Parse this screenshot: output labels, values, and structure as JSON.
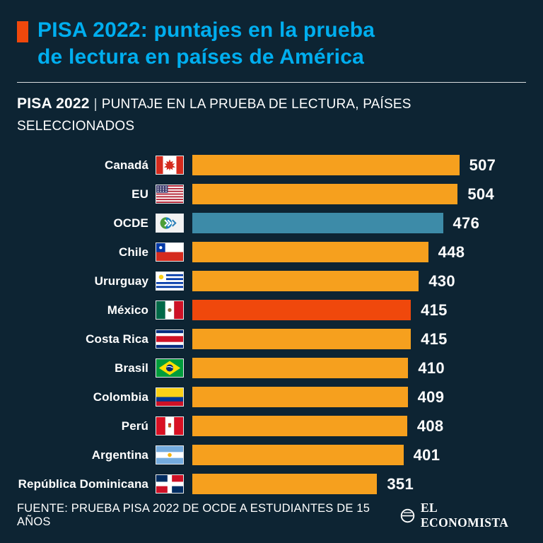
{
  "colors": {
    "background": "#0D2433",
    "accent_cyan": "#00AEEF",
    "bar_orange": "#F6A01E",
    "bar_teal": "#3D8BA8",
    "bar_red": "#F0480C",
    "marker": "#F0480C"
  },
  "header": {
    "title": "PISA 2022: puntajes en la prueba\nde lectura en países de América"
  },
  "subtitle": {
    "bold": "PISA 2022",
    "separator": "|",
    "text": "PUNTAJE EN LA PRUEBA DE LECTURA, PAÍSES SELECCIONADOS"
  },
  "chart_data": {
    "type": "bar",
    "orientation": "horizontal",
    "title": "PISA 2022 | Puntaje en la prueba de lectura, países seleccionados",
    "xlabel": "",
    "ylabel": "",
    "xlim": [
      0,
      507
    ],
    "grid": false,
    "legend": false,
    "value_labels": true,
    "categories": [
      "Canadá",
      "EU",
      "OCDE",
      "Chile",
      "Ururguay",
      "México",
      "Costa Rica",
      "Brasil",
      "Colombia",
      "Perú",
      "Argentina",
      "República Dominicana"
    ],
    "values": [
      507,
      504,
      476,
      448,
      430,
      415,
      415,
      410,
      409,
      408,
      401,
      351
    ],
    "bar_colors": [
      "orange",
      "orange",
      "teal",
      "orange",
      "orange",
      "red",
      "orange",
      "orange",
      "orange",
      "orange",
      "orange",
      "orange"
    ],
    "flags": [
      "canada",
      "usa",
      "oecd",
      "chile",
      "uruguay",
      "mexico",
      "costa-rica",
      "brazil",
      "colombia",
      "peru",
      "argentina",
      "dominican-republic"
    ]
  },
  "footer": {
    "source": "FUENTE: PRUEBA PISA 2022 DE OCDE A ESTUDIANTES DE 15 AÑOS",
    "brand": "EL ECONOMISTA",
    "brand_icon": "el-economista-globe-icon"
  }
}
